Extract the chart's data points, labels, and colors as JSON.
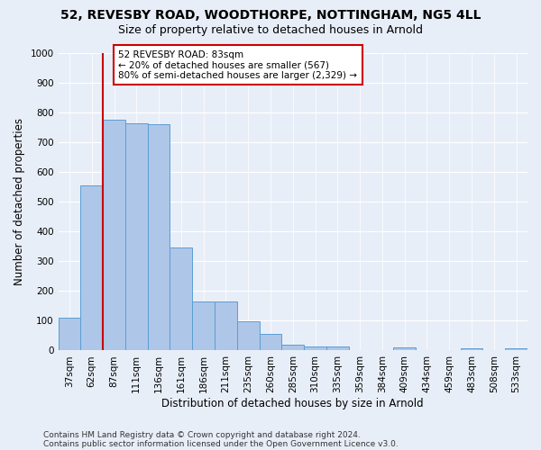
{
  "title1": "52, REVESBY ROAD, WOODTHORPE, NOTTINGHAM, NG5 4LL",
  "title2": "Size of property relative to detached houses in Arnold",
  "xlabel": "Distribution of detached houses by size in Arnold",
  "ylabel": "Number of detached properties",
  "footer1": "Contains HM Land Registry data © Crown copyright and database right 2024.",
  "footer2": "Contains public sector information licensed under the Open Government Licence v3.0.",
  "bar_labels": [
    "37sqm",
    "62sqm",
    "87sqm",
    "111sqm",
    "136sqm",
    "161sqm",
    "186sqm",
    "211sqm",
    "235sqm",
    "260sqm",
    "285sqm",
    "310sqm",
    "335sqm",
    "359sqm",
    "384sqm",
    "409sqm",
    "434sqm",
    "459sqm",
    "483sqm",
    "508sqm",
    "533sqm"
  ],
  "bar_values": [
    110,
    555,
    775,
    765,
    760,
    345,
    165,
    165,
    97,
    55,
    20,
    15,
    15,
    0,
    0,
    10,
    0,
    0,
    8,
    0,
    8
  ],
  "bar_color": "#aec6e8",
  "bar_edge_color": "#5a9fd4",
  "ylim_max": 1000,
  "yticks": [
    0,
    100,
    200,
    300,
    400,
    500,
    600,
    700,
    800,
    900,
    1000
  ],
  "vline_x": 1.5,
  "vline_color": "#cc0000",
  "annotation_text": "52 REVESBY ROAD: 83sqm\n← 20% of detached houses are smaller (567)\n80% of semi-detached houses are larger (2,329) →",
  "annotation_box_facecolor": "#ffffff",
  "annotation_box_edgecolor": "#cc0000",
  "bg_color": "#e8eef8",
  "grid_color": "#ffffff",
  "fig_bg_color": "#e8eef8",
  "title1_fontsize": 10,
  "title2_fontsize": 9,
  "axis_label_fontsize": 8.5,
  "tick_fontsize": 7.5,
  "annotation_fontsize": 7.5,
  "footer_fontsize": 6.5
}
